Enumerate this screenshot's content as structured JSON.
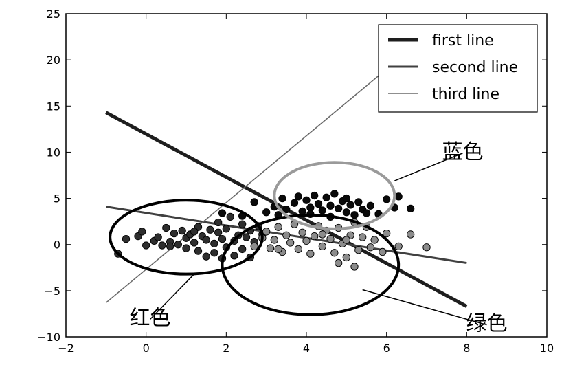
{
  "chart_data": {
    "type": "scatter",
    "xlim": [
      -2,
      10
    ],
    "ylim": [
      -10,
      25
    ],
    "xticks": [
      "−2",
      "0",
      "2",
      "4",
      "6",
      "8",
      "10"
    ],
    "yticks": [
      "−10",
      "−5",
      "0",
      "5",
      "10",
      "15",
      "20",
      "25"
    ],
    "grid": false,
    "legend_position": "top-right",
    "lines": [
      {
        "name": "first line",
        "color": "#1e1e1e",
        "x": [
          -1,
          8
        ],
        "y": [
          14.3,
          -6.7
        ]
      },
      {
        "name": "second line",
        "color": "#404040",
        "x": [
          -1,
          8
        ],
        "y": [
          4.1,
          -2.0
        ]
      },
      {
        "name": "third line",
        "color": "#6a6a6a",
        "x": [
          -1,
          6
        ],
        "y": [
          -6.3,
          19.0
        ]
      }
    ],
    "groups": [
      {
        "label": "红色",
        "color": "#2e2e2e",
        "points": [
          [
            -0.7,
            -1.0
          ],
          [
            -0.5,
            0.6
          ],
          [
            -0.2,
            0.9
          ],
          [
            -0.1,
            1.4
          ],
          [
            0.2,
            0.4
          ],
          [
            0.3,
            0.8
          ],
          [
            0.4,
            -0.1
          ],
          [
            0.5,
            1.8
          ],
          [
            0.6,
            0.3
          ],
          [
            0.7,
            1.2
          ],
          [
            0.8,
            0.0
          ],
          [
            0.9,
            1.5
          ],
          [
            1.0,
            0.7
          ],
          [
            1.0,
            -0.4
          ],
          [
            1.1,
            1.1
          ],
          [
            1.2,
            0.2
          ],
          [
            1.3,
            1.9
          ],
          [
            1.3,
            -0.7
          ],
          [
            1.4,
            0.9
          ],
          [
            1.5,
            0.5
          ],
          [
            1.5,
            -1.3
          ],
          [
            1.6,
            1.6
          ],
          [
            1.7,
            0.1
          ],
          [
            1.7,
            -0.9
          ],
          [
            1.8,
            1.3
          ],
          [
            1.8,
            2.4
          ],
          [
            1.9,
            0.6
          ],
          [
            2.0,
            -0.3
          ],
          [
            2.0,
            1.7
          ],
          [
            2.1,
            3.0
          ],
          [
            2.2,
            0.4
          ],
          [
            2.2,
            -1.2
          ],
          [
            2.3,
            1.0
          ],
          [
            2.4,
            2.2
          ],
          [
            2.4,
            -0.5
          ],
          [
            2.5,
            0.8
          ],
          [
            2.6,
            1.5
          ],
          [
            2.6,
            -1.4
          ],
          [
            2.7,
            0.3
          ],
          [
            2.8,
            2.0
          ],
          [
            0.0,
            -0.1
          ],
          [
            0.6,
            -0.2
          ],
          [
            1.2,
            1.4
          ],
          [
            1.9,
            -1.5
          ],
          [
            2.9,
            1.1
          ]
        ]
      },
      {
        "label": "绿色",
        "color": "#8c8c8c",
        "points": [
          [
            2.7,
            -0.2
          ],
          [
            2.9,
            0.7
          ],
          [
            3.0,
            1.4
          ],
          [
            3.1,
            -0.4
          ],
          [
            3.2,
            0.5
          ],
          [
            3.3,
            1.9
          ],
          [
            3.4,
            -0.8
          ],
          [
            3.5,
            1.0
          ],
          [
            3.6,
            0.2
          ],
          [
            3.7,
            2.2
          ],
          [
            3.8,
            -0.5
          ],
          [
            3.9,
            1.3
          ],
          [
            4.0,
            0.4
          ],
          [
            4.1,
            -1.0
          ],
          [
            4.2,
            0.9
          ],
          [
            4.3,
            2.0
          ],
          [
            4.4,
            -0.2
          ],
          [
            4.5,
            1.5
          ],
          [
            4.6,
            0.6
          ],
          [
            4.7,
            -0.9
          ],
          [
            4.8,
            1.8
          ],
          [
            4.9,
            0.1
          ],
          [
            5.0,
            -1.4
          ],
          [
            5.1,
            1.0
          ],
          [
            5.2,
            2.4
          ],
          [
            5.3,
            -0.6
          ],
          [
            5.4,
            0.8
          ],
          [
            5.5,
            1.9
          ],
          [
            5.6,
            -0.3
          ],
          [
            5.7,
            0.5
          ],
          [
            5.9,
            -0.8
          ],
          [
            6.0,
            1.2
          ],
          [
            6.3,
            -0.2
          ],
          [
            6.6,
            1.1
          ],
          [
            7.0,
            -0.3
          ],
          [
            4.8,
            -2.0
          ],
          [
            5.2,
            -2.4
          ],
          [
            3.3,
            -0.5
          ],
          [
            4.4,
            1.1
          ],
          [
            5.0,
            0.5
          ]
        ]
      },
      {
        "label": "蓝色",
        "color": "#0a0a0a",
        "points": [
          [
            1.9,
            3.4
          ],
          [
            2.4,
            3.1
          ],
          [
            2.7,
            4.6
          ],
          [
            3.0,
            3.5
          ],
          [
            3.2,
            4.1
          ],
          [
            3.4,
            5.0
          ],
          [
            3.5,
            3.8
          ],
          [
            3.7,
            4.5
          ],
          [
            3.8,
            5.2
          ],
          [
            3.9,
            3.6
          ],
          [
            4.0,
            4.8
          ],
          [
            4.1,
            4.0
          ],
          [
            4.2,
            5.3
          ],
          [
            4.3,
            4.4
          ],
          [
            4.4,
            3.7
          ],
          [
            4.5,
            5.1
          ],
          [
            4.6,
            4.2
          ],
          [
            4.7,
            5.5
          ],
          [
            4.8,
            3.9
          ],
          [
            4.9,
            4.7
          ],
          [
            5.0,
            3.5
          ],
          [
            5.1,
            4.3
          ],
          [
            5.2,
            3.2
          ],
          [
            5.3,
            4.6
          ],
          [
            5.4,
            3.8
          ],
          [
            5.5,
            3.4
          ],
          [
            5.6,
            4.2
          ],
          [
            5.8,
            3.3
          ],
          [
            6.0,
            4.9
          ],
          [
            6.2,
            4.0
          ],
          [
            6.3,
            5.2
          ],
          [
            6.6,
            3.9
          ],
          [
            3.3,
            3.2
          ],
          [
            4.6,
            3.0
          ],
          [
            5.0,
            5.0
          ],
          [
            4.1,
            3.3
          ]
        ]
      }
    ],
    "ellipses": [
      {
        "label": "红色",
        "color": "#000000",
        "cx": 1.0,
        "cy": 0.8,
        "rx": 1.9,
        "ry": 4.0
      },
      {
        "label": "绿色",
        "color": "#000000",
        "cx": 4.1,
        "cy": -2.2,
        "rx": 2.2,
        "ry": 5.4
      },
      {
        "label": "蓝色",
        "color": "#9a9a9a",
        "cx": 4.7,
        "cy": 5.3,
        "rx": 1.5,
        "ry": 3.6
      }
    ],
    "annotations": [
      {
        "text": "蓝色",
        "x": 7.9,
        "y": 9.9,
        "target": [
          6.2,
          6.9
        ]
      },
      {
        "text": "红色",
        "x": 0.1,
        "y": -8.1,
        "target": [
          1.2,
          -3.2
        ]
      },
      {
        "text": "绿色",
        "x": 8.5,
        "y": -8.7,
        "target": [
          5.4,
          -4.9
        ]
      }
    ]
  }
}
